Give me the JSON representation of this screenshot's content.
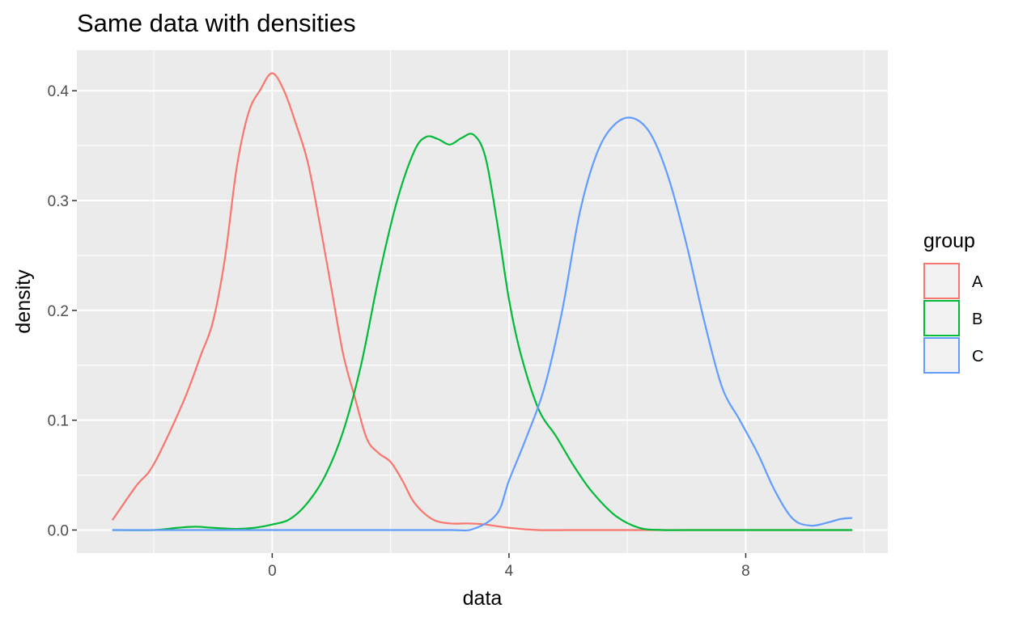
{
  "chart_data": {
    "type": "line",
    "title": "Same data with densities",
    "xlabel": "data",
    "ylabel": "density",
    "xlim": [
      -3.3,
      10.4
    ],
    "ylim": [
      -0.021,
      0.437
    ],
    "x_ticks": [
      0,
      4,
      8
    ],
    "x_tick_labels": [
      "0",
      "4",
      "8"
    ],
    "y_ticks": [
      0.0,
      0.1,
      0.2,
      0.3,
      0.4
    ],
    "y_tick_labels": [
      "0.0",
      "0.1",
      "0.2",
      "0.3",
      "0.4"
    ],
    "grid": true,
    "legend": {
      "title": "group",
      "position": "right"
    },
    "series": [
      {
        "name": "A",
        "color": "#F8766D",
        "x": [
          -2.7,
          -2.3,
          -2.0,
          -1.5,
          -1.2,
          -1.0,
          -0.8,
          -0.6,
          -0.4,
          -0.2,
          0.0,
          0.2,
          0.4,
          0.6,
          0.8,
          1.0,
          1.2,
          1.4,
          1.6,
          1.8,
          2.0,
          2.2,
          2.4,
          2.7,
          3.0,
          3.3,
          3.6,
          4.0,
          4.5,
          5.0,
          6.0,
          7.0,
          8.0,
          9.0,
          9.8
        ],
        "values": [
          0.009,
          0.04,
          0.06,
          0.117,
          0.16,
          0.19,
          0.247,
          0.33,
          0.38,
          0.401,
          0.416,
          0.4,
          0.37,
          0.335,
          0.28,
          0.22,
          0.16,
          0.12,
          0.083,
          0.07,
          0.062,
          0.045,
          0.025,
          0.01,
          0.006,
          0.006,
          0.005,
          0.002,
          0.0,
          0.0,
          0.0,
          0.0,
          0.0,
          0.0,
          0.0
        ]
      },
      {
        "name": "B",
        "color": "#00BA38",
        "x": [
          -2.7,
          -2.0,
          -1.6,
          -1.3,
          -1.0,
          -0.6,
          -0.3,
          0.0,
          0.3,
          0.6,
          0.9,
          1.2,
          1.5,
          1.8,
          2.1,
          2.4,
          2.6,
          2.8,
          3.0,
          3.2,
          3.4,
          3.6,
          3.8,
          4.0,
          4.2,
          4.5,
          4.8,
          5.1,
          5.4,
          5.8,
          6.2,
          6.6,
          7.0,
          8.0,
          9.0,
          9.8
        ],
        "values": [
          0.0,
          0.0,
          0.002,
          0.003,
          0.002,
          0.001,
          0.002,
          0.005,
          0.01,
          0.025,
          0.05,
          0.09,
          0.15,
          0.23,
          0.298,
          0.345,
          0.358,
          0.356,
          0.351,
          0.357,
          0.36,
          0.34,
          0.28,
          0.21,
          0.16,
          0.11,
          0.085,
          0.058,
          0.035,
          0.013,
          0.002,
          0.0,
          0.0,
          0.0,
          0.0,
          0.0
        ]
      },
      {
        "name": "C",
        "color": "#619CFF",
        "x": [
          -2.7,
          0.0,
          2.0,
          3.0,
          3.4,
          3.8,
          4.0,
          4.3,
          4.6,
          4.9,
          5.2,
          5.5,
          5.8,
          6.1,
          6.4,
          6.7,
          7.0,
          7.3,
          7.6,
          7.9,
          8.2,
          8.5,
          8.8,
          9.1,
          9.4,
          9.6,
          9.8
        ],
        "values": [
          0.0,
          0.0,
          0.0,
          0.0,
          0.001,
          0.015,
          0.045,
          0.085,
          0.13,
          0.2,
          0.29,
          0.345,
          0.37,
          0.375,
          0.36,
          0.32,
          0.26,
          0.19,
          0.13,
          0.1,
          0.07,
          0.035,
          0.01,
          0.004,
          0.007,
          0.01,
          0.011
        ]
      }
    ]
  }
}
